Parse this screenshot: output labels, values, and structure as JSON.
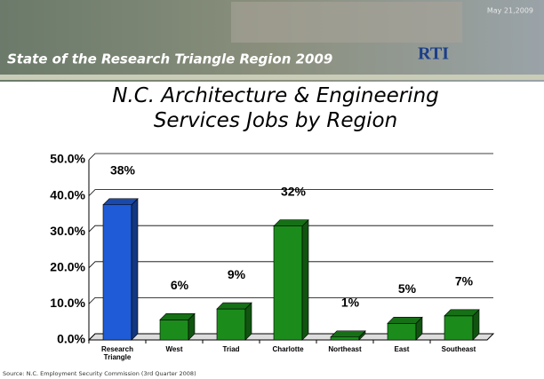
{
  "header": {
    "title": "State of the Research Triangle Region 2009",
    "date": "May 21,2009",
    "logo": "RTI"
  },
  "chart_data": {
    "type": "bar3d",
    "title": "N.C. Architecture & Engineering Services Jobs by Region",
    "categories": [
      "Research Triangle",
      "West",
      "Triad",
      "Charlotte",
      "Northeast",
      "East",
      "Southeast"
    ],
    "values": [
      37.5,
      5.6,
      8.6,
      31.6,
      0.8,
      4.6,
      6.7
    ],
    "value_labels": [
      "38%",
      "6%",
      "9%",
      "32%",
      "1%",
      "5%",
      "7%"
    ],
    "colors": [
      "#1f5bd6",
      "#1b8c1b",
      "#1b8c1b",
      "#1b8c1b",
      "#1b8c1b",
      "#1b8c1b",
      "#1b8c1b"
    ],
    "ylim": [
      0,
      50
    ],
    "yticks": [
      {
        "value": 0,
        "label": "0.0%"
      },
      {
        "value": 10,
        "label": "10.0%"
      },
      {
        "value": 20,
        "label": "20.0%"
      },
      {
        "value": 30,
        "label": "30.0%"
      },
      {
        "value": 40,
        "label": "40.0%"
      },
      {
        "value": 50,
        "label": "50.0%"
      }
    ],
    "grid": true,
    "source": "Source: N.C. Employment Security Commission (3rd Quarter 2008)"
  }
}
